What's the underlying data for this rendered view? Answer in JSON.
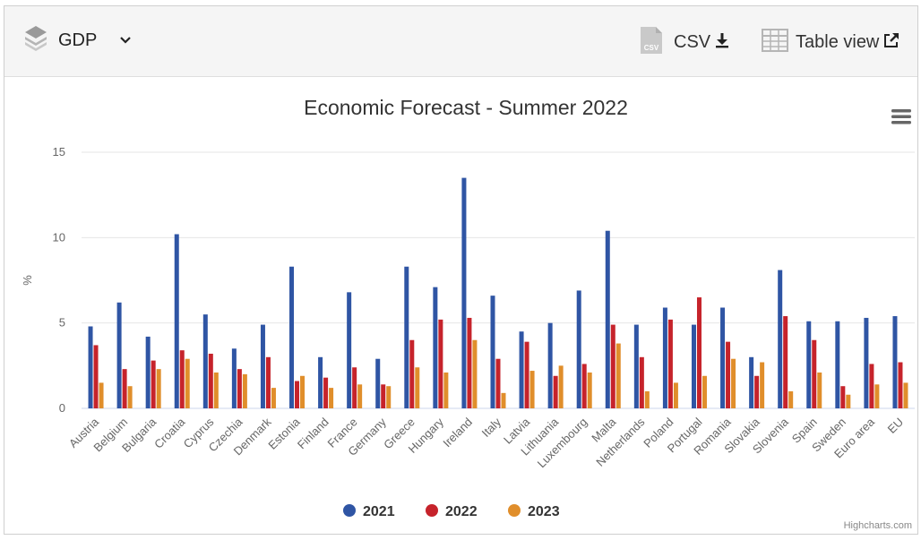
{
  "toolbar": {
    "dataset_label": "GDP",
    "csv_label": "CSV",
    "table_view_label": "Table view"
  },
  "credits": "Highcharts.com",
  "chart_data": {
    "type": "bar",
    "title": "Economic Forecast - Summer 2022",
    "ylabel": "%",
    "xlabel": "",
    "ylim": [
      0,
      15
    ],
    "yticks": [
      0,
      5,
      10,
      15
    ],
    "grid": true,
    "legend_position": "bottom-center",
    "categories": [
      "Austria",
      "Belgium",
      "Bulgaria",
      "Croatia",
      "Cyprus",
      "Czechia",
      "Denmark",
      "Estonia",
      "Finland",
      "France",
      "Germany",
      "Greece",
      "Hungary",
      "Ireland",
      "Italy",
      "Latvia",
      "Lithuania",
      "Luxembourg",
      "Malta",
      "Netherlands",
      "Poland",
      "Portugal",
      "Romania",
      "Slovakia",
      "Slovenia",
      "Spain",
      "Sweden",
      "Euro area",
      "EU"
    ],
    "series": [
      {
        "name": "2021",
        "color": "#2f55a4",
        "values": [
          4.8,
          6.2,
          4.2,
          10.2,
          5.5,
          3.5,
          4.9,
          8.3,
          3.0,
          6.8,
          2.9,
          8.3,
          7.1,
          13.5,
          6.6,
          4.5,
          5.0,
          6.9,
          10.4,
          4.9,
          5.9,
          4.9,
          5.9,
          3.0,
          8.1,
          5.1,
          5.1,
          5.3,
          5.4
        ]
      },
      {
        "name": "2022",
        "color": "#c6232b",
        "values": [
          3.7,
          2.3,
          2.8,
          3.4,
          3.2,
          2.3,
          3.0,
          1.6,
          1.8,
          2.4,
          1.4,
          4.0,
          5.2,
          5.3,
          2.9,
          3.9,
          1.9,
          2.6,
          4.9,
          3.0,
          5.2,
          6.5,
          3.9,
          1.9,
          5.4,
          4.0,
          1.3,
          2.6,
          2.7
        ]
      },
      {
        "name": "2023",
        "color": "#e08e2b",
        "values": [
          1.5,
          1.3,
          2.3,
          2.9,
          2.1,
          2.0,
          1.2,
          1.9,
          1.2,
          1.4,
          1.3,
          2.4,
          2.1,
          4.0,
          0.9,
          2.2,
          2.5,
          2.1,
          3.8,
          1.0,
          1.5,
          1.9,
          2.9,
          2.7,
          1.0,
          2.1,
          0.8,
          1.4,
          1.5
        ]
      }
    ]
  }
}
